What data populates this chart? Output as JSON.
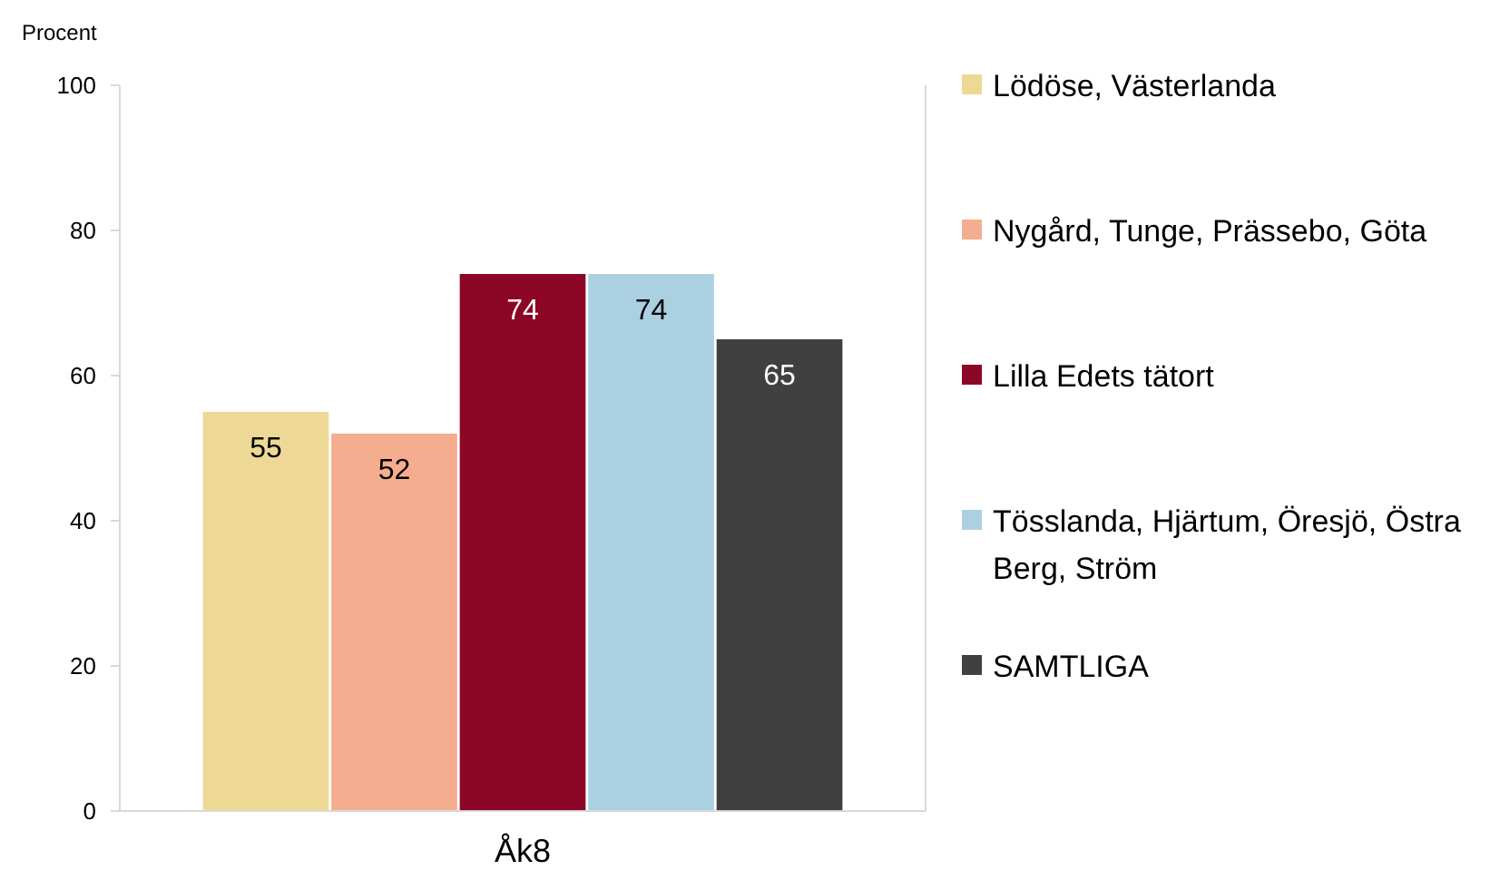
{
  "chart_data": {
    "type": "bar",
    "ylabel": "Procent",
    "categories": [
      "Åk8"
    ],
    "series": [
      {
        "name": "Lödöse, Västerlanda",
        "color": "#edd895",
        "values": [
          55
        ]
      },
      {
        "name": "Nygård, Tunge, Prässebo, Göta",
        "color": "#f5ad8f",
        "values": [
          52
        ]
      },
      {
        "name": "Lilla Edets tätort",
        "color": "#8c0725",
        "values": [
          74
        ]
      },
      {
        "name": "Tösslanda, Hjärtum, Öresjö, Östra Berg, Ström",
        "color": "#abd0e1",
        "values": [
          74
        ]
      },
      {
        "name": "SAMTLIGA",
        "color": "#404040",
        "values": [
          65
        ]
      }
    ],
    "ylim": [
      0,
      100
    ],
    "yticks": [
      0,
      20,
      40,
      60,
      80,
      100
    ],
    "grid": false,
    "legend": "right",
    "data_labels": true
  }
}
